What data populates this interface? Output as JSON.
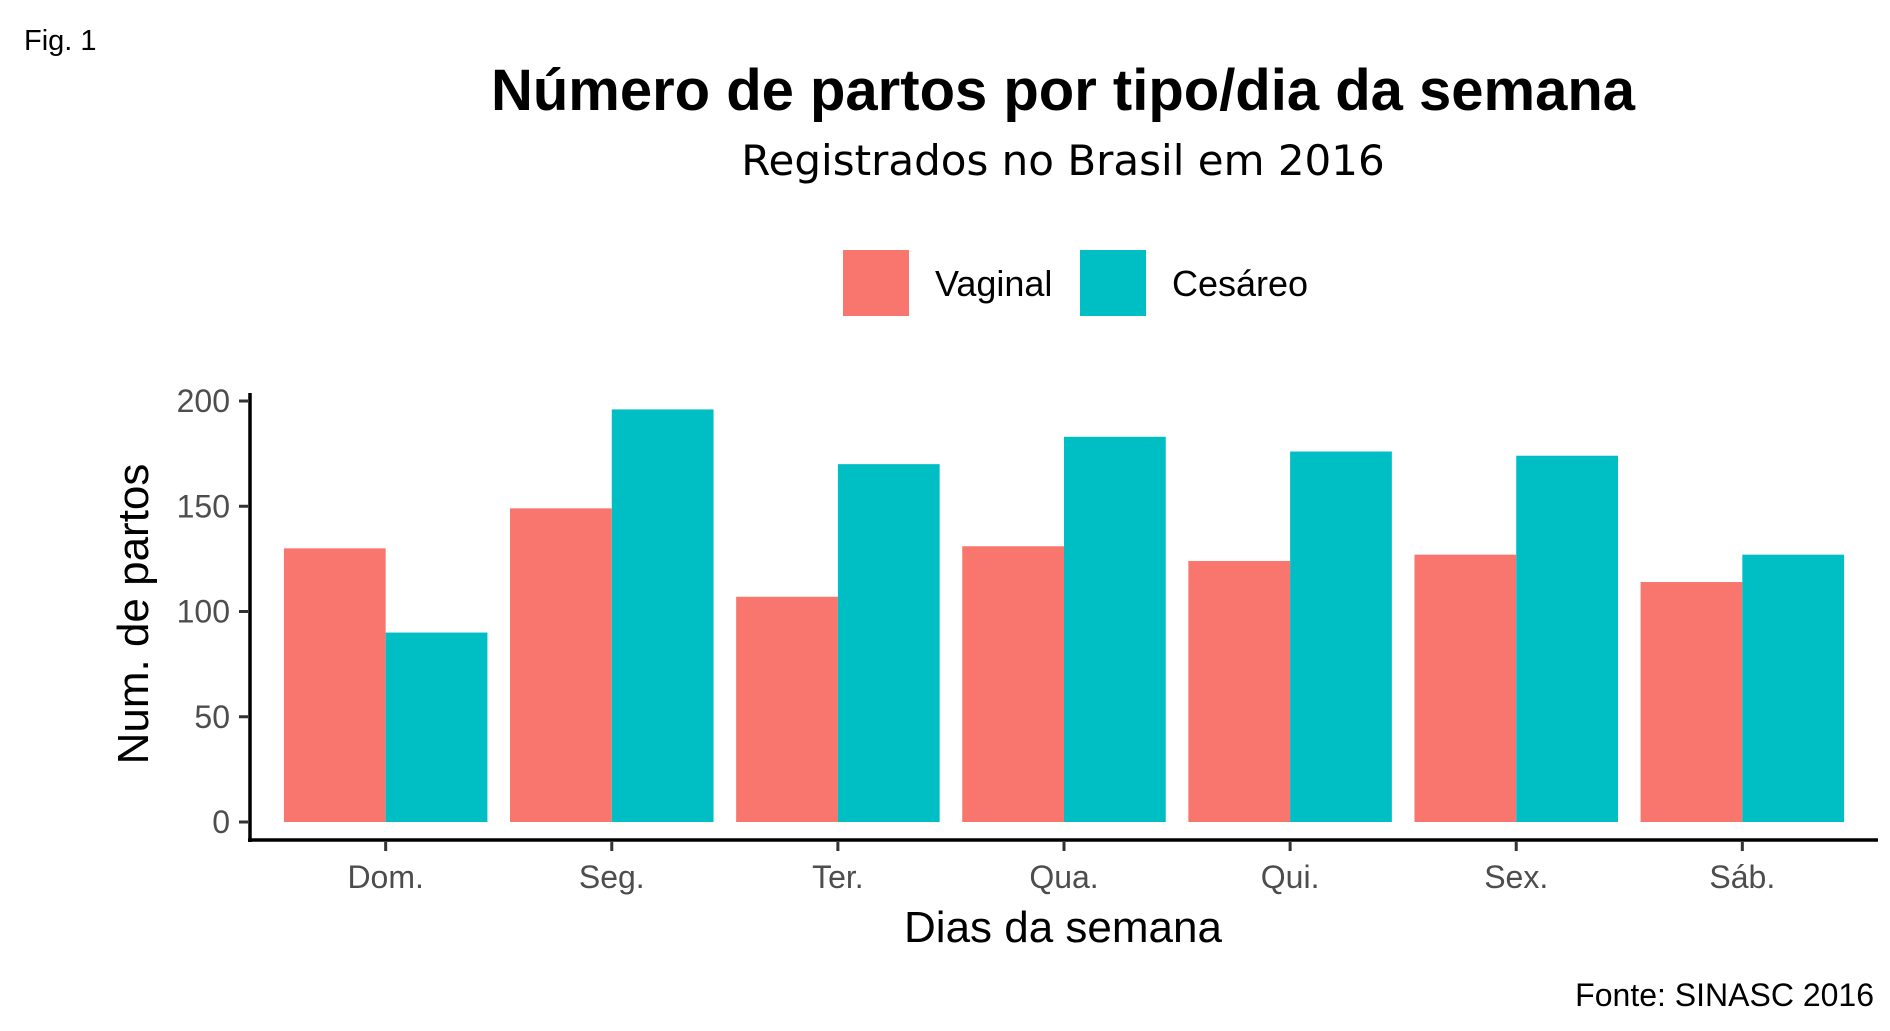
{
  "figure_label": "Fig. 1",
  "colors": {
    "vaginal": "#F8766D",
    "cesareo": "#00BFC4"
  },
  "chart_data": {
    "type": "bar",
    "title": "Número de partos por tipo/dia da semana",
    "subtitle": "Registrados no Brasil em 2016",
    "xlabel": "Dias da semana",
    "ylabel": "Num. de partos",
    "caption": "Fonte: SINASC 2016",
    "categories": [
      "Dom.",
      "Seg.",
      "Ter.",
      "Qua.",
      "Qui.",
      "Sex.",
      "Sáb."
    ],
    "series": [
      {
        "name": "Vaginal",
        "values": [
          130,
          149,
          107,
          131,
          124,
          127,
          114
        ]
      },
      {
        "name": "Cesáreo",
        "values": [
          90,
          196,
          170,
          183,
          176,
          174,
          127
        ]
      }
    ],
    "ylim": [
      0,
      200
    ],
    "yticks": [
      0,
      50,
      100,
      150,
      200
    ],
    "ytick_labels": [
      "0",
      "50",
      "100",
      "150",
      "200"
    ],
    "grid": false,
    "legend_position": "top"
  }
}
